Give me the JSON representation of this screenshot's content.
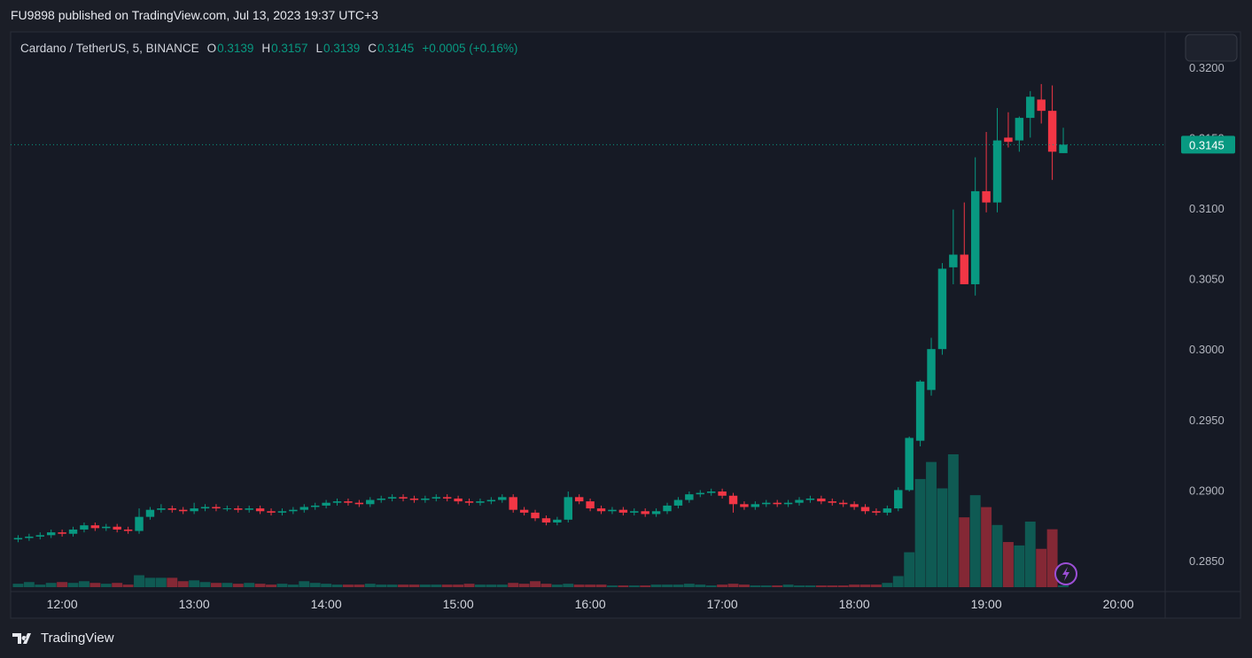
{
  "header": {
    "publisher": "FU9898 published on TradingView.com, Jul 13, 2023 19:37 UTC+3"
  },
  "footer": {
    "brand": "TradingView"
  },
  "chart_data": {
    "type": "candlestick",
    "symbol": "Cardano / TetherUS, 5, BINANCE",
    "legend_labels": {
      "open": "O",
      "high": "H",
      "low": "L",
      "close": "C"
    },
    "change": "+0.0005 (+0.16%)",
    "colors": {
      "up": "#089981",
      "down": "#f23645"
    },
    "grid": true,
    "x": [
      700,
      705,
      710,
      715,
      720,
      725,
      730,
      735,
      740,
      745,
      750,
      755,
      760,
      765,
      770,
      775,
      780,
      785,
      790,
      795,
      800,
      805,
      810,
      815,
      820,
      825,
      830,
      835,
      840,
      845,
      850,
      855,
      860,
      865,
      870,
      875,
      880,
      885,
      890,
      895,
      900,
      905,
      910,
      915,
      920,
      925,
      930,
      935,
      940,
      945,
      950,
      955,
      960,
      965,
      970,
      975,
      980,
      985,
      990,
      995,
      1000,
      1005,
      1010,
      1015,
      1020,
      1025,
      1030,
      1035,
      1040,
      1045,
      1050,
      1055,
      1060,
      1065,
      1070,
      1075,
      1080,
      1085,
      1090,
      1095,
      1100,
      1105,
      1110,
      1115,
      1120,
      1125,
      1130,
      1135,
      1140,
      1145,
      1150,
      1155,
      1160,
      1165,
      1170,
      1175
    ],
    "open": [
      0.2865,
      0.2866,
      0.2867,
      0.2868,
      0.287,
      0.2869,
      0.2872,
      0.2875,
      0.2873,
      0.2874,
      0.2872,
      0.2871,
      0.2881,
      0.2886,
      0.2887,
      0.2886,
      0.2885,
      0.2887,
      0.2888,
      0.2887,
      0.2887,
      0.2886,
      0.2887,
      0.2885,
      0.2884,
      0.2885,
      0.2886,
      0.2888,
      0.2889,
      0.2891,
      0.2892,
      0.2891,
      0.289,
      0.2893,
      0.2894,
      0.2895,
      0.2894,
      0.2893,
      0.2894,
      0.2895,
      0.2894,
      0.2892,
      0.2891,
      0.2892,
      0.2893,
      0.2895,
      0.2886,
      0.2884,
      0.288,
      0.2877,
      0.2879,
      0.2895,
      0.2892,
      0.2887,
      0.2885,
      0.2886,
      0.2884,
      0.2885,
      0.2883,
      0.2885,
      0.2889,
      0.2893,
      0.2897,
      0.2898,
      0.2899,
      0.2896,
      0.289,
      0.2888,
      0.289,
      0.2891,
      0.289,
      0.2891,
      0.2893,
      0.2894,
      0.2892,
      0.2891,
      0.289,
      0.2888,
      0.2885,
      0.2884,
      0.2887,
      0.29,
      0.2935,
      0.2971,
      0.3,
      0.3058,
      0.3067,
      0.3046,
      0.3112,
      0.3104,
      0.315,
      0.3148,
      0.3164,
      0.3177,
      0.3169,
      0.3139
    ],
    "high": [
      0.2868,
      0.2869,
      0.287,
      0.2872,
      0.2872,
      0.2874,
      0.2877,
      0.2877,
      0.2876,
      0.2876,
      0.2874,
      0.2887,
      0.2888,
      0.289,
      0.2889,
      0.2888,
      0.2891,
      0.289,
      0.289,
      0.2889,
      0.2889,
      0.2889,
      0.2889,
      0.2887,
      0.2887,
      0.2888,
      0.289,
      0.2891,
      0.2893,
      0.2894,
      0.2894,
      0.2893,
      0.2895,
      0.2896,
      0.2897,
      0.2897,
      0.2896,
      0.2896,
      0.2897,
      0.2897,
      0.2896,
      0.2894,
      0.2894,
      0.2895,
      0.2897,
      0.2897,
      0.2888,
      0.2886,
      0.2882,
      0.2881,
      0.2899,
      0.2897,
      0.2894,
      0.2889,
      0.2888,
      0.2888,
      0.2887,
      0.2887,
      0.2887,
      0.2891,
      0.2895,
      0.2899,
      0.29,
      0.2901,
      0.2901,
      0.2898,
      0.2892,
      0.2892,
      0.2893,
      0.2893,
      0.2893,
      0.2895,
      0.2896,
      0.2896,
      0.2894,
      0.2893,
      0.2892,
      0.289,
      0.2887,
      0.2889,
      0.2902,
      0.2938,
      0.2978,
      0.3008,
      0.3061,
      0.3099,
      0.3104,
      0.3136,
      0.3154,
      0.3171,
      0.3168,
      0.3165,
      0.3183,
      0.3188,
      0.3187,
      0.3157
    ],
    "low": [
      0.2863,
      0.2864,
      0.2865,
      0.2866,
      0.2867,
      0.2867,
      0.287,
      0.2871,
      0.2871,
      0.287,
      0.2869,
      0.2869,
      0.2879,
      0.2884,
      0.2884,
      0.2883,
      0.2883,
      0.2885,
      0.2885,
      0.2885,
      0.2884,
      0.2884,
      0.2883,
      0.2882,
      0.2882,
      0.2883,
      0.2884,
      0.2886,
      0.2887,
      0.2889,
      0.2889,
      0.2888,
      0.2888,
      0.2891,
      0.2892,
      0.2892,
      0.2891,
      0.2891,
      0.2892,
      0.2892,
      0.289,
      0.2889,
      0.2889,
      0.289,
      0.2891,
      0.2884,
      0.2882,
      0.2878,
      0.2875,
      0.2875,
      0.2877,
      0.289,
      0.2885,
      0.2883,
      0.2883,
      0.2882,
      0.2882,
      0.2881,
      0.2881,
      0.2883,
      0.2887,
      0.2891,
      0.2895,
      0.2896,
      0.2894,
      0.2884,
      0.2886,
      0.2886,
      0.2888,
      0.2888,
      0.2888,
      0.2889,
      0.2891,
      0.289,
      0.2889,
      0.2888,
      0.2886,
      0.2883,
      0.2882,
      0.2882,
      0.2885,
      0.2899,
      0.2931,
      0.2967,
      0.2996,
      0.3046,
      0.3046,
      0.3038,
      0.3097,
      0.3097,
      0.3143,
      0.314,
      0.315,
      0.316,
      0.312,
      0.3139
    ],
    "close": [
      0.2866,
      0.2867,
      0.2868,
      0.287,
      0.2869,
      0.2872,
      0.2875,
      0.2873,
      0.2874,
      0.2872,
      0.2871,
      0.2881,
      0.2886,
      0.2887,
      0.2886,
      0.2885,
      0.2887,
      0.2888,
      0.2887,
      0.2887,
      0.2886,
      0.2887,
      0.2885,
      0.2884,
      0.2885,
      0.2886,
      0.2888,
      0.2889,
      0.2891,
      0.2892,
      0.2891,
      0.289,
      0.2893,
      0.2894,
      0.2895,
      0.2894,
      0.2893,
      0.2894,
      0.2895,
      0.2894,
      0.2892,
      0.2891,
      0.2892,
      0.2893,
      0.2895,
      0.2886,
      0.2884,
      0.288,
      0.2877,
      0.2879,
      0.2895,
      0.2892,
      0.2887,
      0.2885,
      0.2886,
      0.2884,
      0.2885,
      0.2883,
      0.2885,
      0.2889,
      0.2893,
      0.2897,
      0.2898,
      0.2899,
      0.2896,
      0.289,
      0.2888,
      0.289,
      0.2891,
      0.289,
      0.2891,
      0.2893,
      0.2894,
      0.2892,
      0.2891,
      0.289,
      0.2888,
      0.2885,
      0.2884,
      0.2887,
      0.29,
      0.2937,
      0.2977,
      0.3,
      0.3057,
      0.3067,
      0.3046,
      0.3112,
      0.3104,
      0.3148,
      0.3147,
      0.3164,
      0.3179,
      0.3169,
      0.314,
      0.3145
    ],
    "volume": [
      4,
      6,
      3,
      5,
      6,
      5,
      7,
      5,
      4,
      5,
      3,
      14,
      11,
      11,
      11,
      7,
      8,
      6,
      5,
      5,
      4,
      5,
      4,
      3,
      4,
      3,
      7,
      5,
      4,
      3,
      3,
      3,
      4,
      3,
      3,
      3,
      3,
      3,
      3,
      3,
      3,
      4,
      3,
      3,
      3,
      5,
      4,
      7,
      4,
      3,
      4,
      3,
      3,
      3,
      2,
      2,
      2,
      2,
      3,
      3,
      3,
      4,
      3,
      2,
      3,
      4,
      3,
      2,
      2,
      2,
      3,
      2,
      2,
      2,
      2,
      2,
      3,
      3,
      3,
      5,
      13,
      41,
      127,
      147,
      116,
      156,
      82,
      108,
      94,
      73,
      53,
      49,
      77,
      45,
      68,
      2
    ],
    "xlim": [
      696.6,
      1221.3
    ],
    "xticks": [
      {
        "value": 720,
        "label": "12:00"
      },
      {
        "value": 780,
        "label": "13:00"
      },
      {
        "value": 840,
        "label": "14:00"
      },
      {
        "value": 900,
        "label": "15:00"
      },
      {
        "value": 960,
        "label": "16:00"
      },
      {
        "value": 1020,
        "label": "17:00"
      },
      {
        "value": 1080,
        "label": "18:00"
      },
      {
        "value": 1140,
        "label": "19:00"
      },
      {
        "value": 1200,
        "label": "20:00"
      }
    ],
    "ylim": [
      0.2828,
      0.3225
    ],
    "yticks": [
      {
        "value": 0.285,
        "label": "0.2850"
      },
      {
        "value": 0.29,
        "label": "0.2900"
      },
      {
        "value": 0.295,
        "label": "0.2950"
      },
      {
        "value": 0.3,
        "label": "0.3000"
      },
      {
        "value": 0.305,
        "label": "0.3050"
      },
      {
        "value": 0.31,
        "label": "0.3100"
      },
      {
        "value": 0.315,
        "label": "0.3150"
      },
      {
        "value": 0.32,
        "label": "0.3200"
      }
    ]
  }
}
